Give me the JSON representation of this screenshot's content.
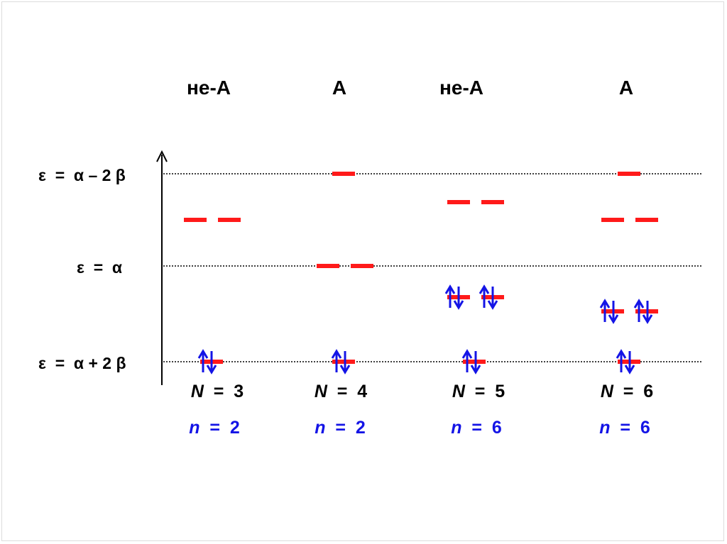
{
  "colors": {
    "level": "#ff1a1a",
    "electron": "#1414e6",
    "text": "#000000",
    "guide": "#000000"
  },
  "energy_labels": {
    "top": "ε  =  α – 2 β",
    "middle": "ε  =  α",
    "bottom": "ε  =  α + 2 β"
  },
  "columns": [
    {
      "title": "не-А",
      "N_label": "N",
      "N_eq": "  =  3",
      "n_label": "n",
      "n_eq": "  =  2"
    },
    {
      "title": "А",
      "N_label": "N",
      "N_eq": "  =  4",
      "n_label": "n",
      "n_eq": "  =  2"
    },
    {
      "title": "не-А",
      "N_label": "N",
      "N_eq": "  =  5",
      "n_label": "n",
      "n_eq": "  =  6"
    },
    {
      "title": "А",
      "N_label": "N",
      "N_eq": "  =  6",
      "n_label": "n",
      "n_eq": "  =  6"
    }
  ],
  "axis_icon": "up-arrow-icon",
  "electron_icon": "spin-pair-arrows-icon"
}
